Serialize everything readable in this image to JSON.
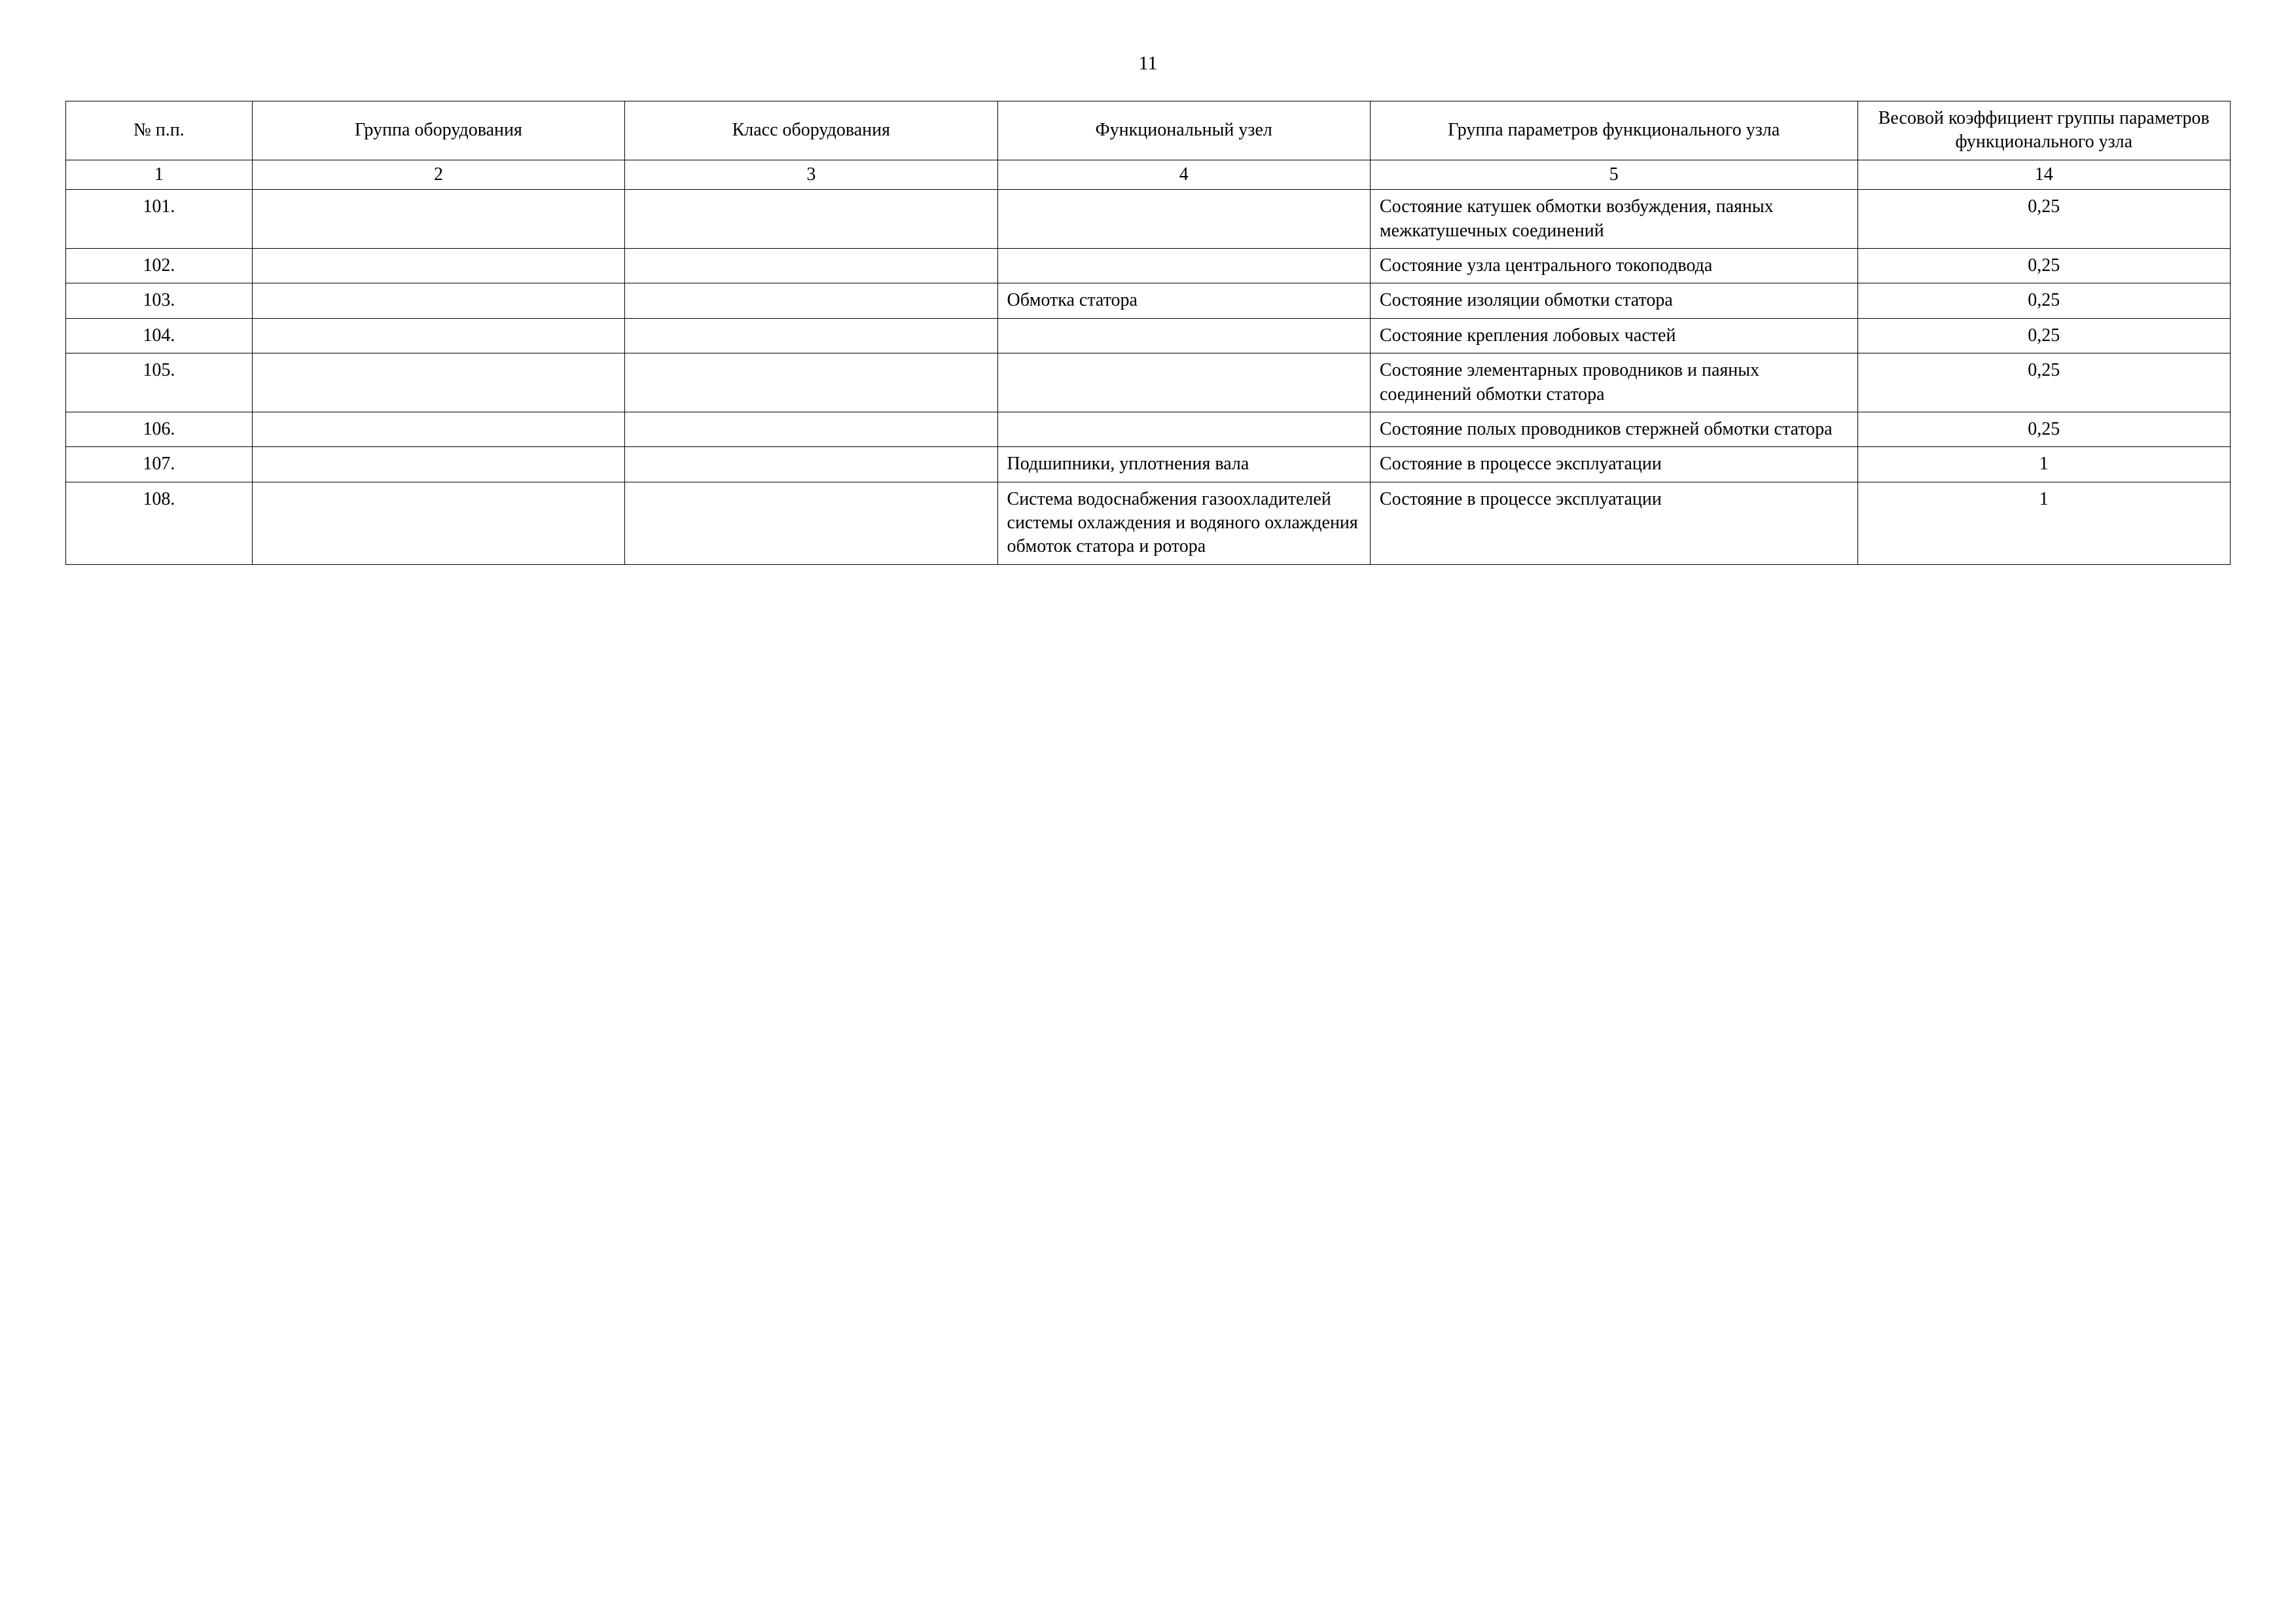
{
  "page_number": "11",
  "table": {
    "headers": {
      "col1": "№ п.п.",
      "col2": "Группа оборудования",
      "col3": "Класс оборудования",
      "col4": "Функциональный узел",
      "col5": "Группа параметров функционального узла",
      "col6": "Весовой коэффициент группы параметров функционального узла"
    },
    "column_numbers": {
      "c1": "1",
      "c2": "2",
      "c3": "3",
      "c4": "4",
      "c5": "5",
      "c6": "14"
    },
    "rows": [
      {
        "num": "101.",
        "group": "",
        "class": "",
        "func": "",
        "params": "Состояние катушек обмотки возбуждения, паяных межкатушечных соединений",
        "weight": "0,25"
      },
      {
        "num": "102.",
        "group": "",
        "class": "",
        "func": "",
        "params": "Состояние узла центрального токоподвода",
        "weight": "0,25"
      },
      {
        "num": "103.",
        "group": "",
        "class": "",
        "func": "Обмотка статора",
        "params": "Состояние изоляции обмотки статора",
        "weight": "0,25"
      },
      {
        "num": "104.",
        "group": "",
        "class": "",
        "func": "",
        "params": "Состояние крепления лобовых частей",
        "weight": "0,25"
      },
      {
        "num": "105.",
        "group": "",
        "class": "",
        "func": "",
        "params": "Состояние элементарных проводников и паяных соединений обмотки статора",
        "weight": "0,25"
      },
      {
        "num": "106.",
        "group": "",
        "class": "",
        "func": "",
        "params": "Состояние полых проводников стержней обмотки статора",
        "weight": "0,25"
      },
      {
        "num": "107.",
        "group": "",
        "class": "",
        "func": "Подшипники, уплотнения вала",
        "params": "Состояние в процессе эксплуатации",
        "weight": "1"
      },
      {
        "num": "108.",
        "group": "",
        "class": "",
        "func": "Система водоснабжения газоохладителей системы охлаждения и водяного охлаждения обмоток статора и ротора",
        "params": "Состояние в процессе эксплуатации",
        "weight": "1"
      }
    ]
  }
}
